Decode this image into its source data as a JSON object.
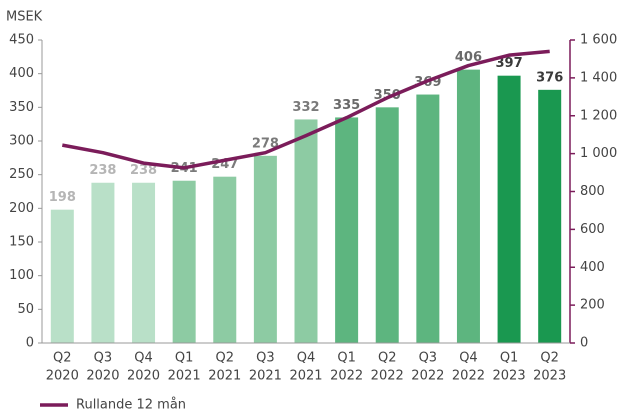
{
  "chart_data": {
    "type": "bar",
    "y_label": "MSEK",
    "categories": [
      [
        "Q2",
        "2020"
      ],
      [
        "Q3",
        "2020"
      ],
      [
        "Q4",
        "2020"
      ],
      [
        "Q1",
        "2021"
      ],
      [
        "Q2",
        "2021"
      ],
      [
        "Q3",
        "2021"
      ],
      [
        "Q4",
        "2021"
      ],
      [
        "Q1",
        "2022"
      ],
      [
        "Q2",
        "2022"
      ],
      [
        "Q3",
        "2022"
      ],
      [
        "Q4",
        "2022"
      ],
      [
        "Q1",
        "2023"
      ],
      [
        "Q2",
        "2023"
      ]
    ],
    "values": [
      198,
      238,
      238,
      241,
      247,
      278,
      332,
      335,
      350,
      369,
      406,
      397,
      376
    ],
    "colors": [
      "#b9e0c8",
      "#b9e0c8",
      "#b9e0c8",
      "#8dcba3",
      "#8dcba3",
      "#8dcba3",
      "#8dcba3",
      "#5db57f",
      "#5db57f",
      "#5db57f",
      "#5db57f",
      "#1a9850",
      "#1a9850"
    ],
    "label_colors": [
      "#b5b5b5",
      "#b5b5b5",
      "#b5b5b5",
      "#7a7a7a",
      "#7a7a7a",
      "#7a7a7a",
      "#7a7a7a",
      "#6a6a6a",
      "#6a6a6a",
      "#6a6a6a",
      "#6a6a6a",
      "#3a3a3a",
      "#3a3a3a"
    ],
    "ylim": [
      0,
      450
    ],
    "yticks": [
      0,
      50,
      100,
      150,
      200,
      250,
      300,
      350,
      400,
      450
    ],
    "y2lim": [
      0,
      1600
    ],
    "y2ticks": [
      0,
      200,
      400,
      600,
      800,
      {
        "value": 1000,
        "label": "1 000"
      },
      {
        "value": 1200,
        "label": "1 200"
      },
      {
        "value": 1400,
        "label": "1 400"
      },
      {
        "value": 1600,
        "label": "1 600"
      }
    ],
    "series": [
      {
        "name": "Rullande 12 mån",
        "color": "#7b1c5a",
        "axis": "y2",
        "values": [
          1045,
          1005,
          950,
          925,
          965,
          1005,
          1095,
          1190,
          1295,
          1385,
          1465,
          1520,
          1540
        ]
      }
    ]
  }
}
